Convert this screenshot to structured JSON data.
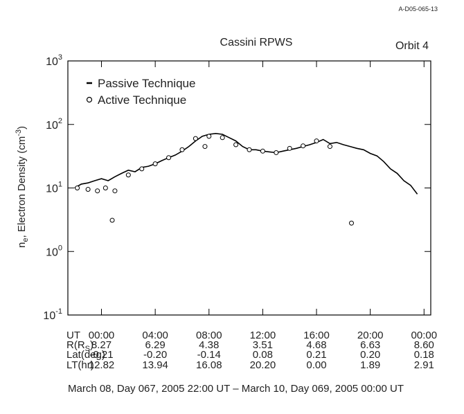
{
  "figure_id": "A-D05-065-13",
  "chart_data": {
    "type": "line",
    "title": "Cassini  RPWS",
    "subtitle": "Orbit 4",
    "y_label": [
      "n",
      "e",
      ", Electron Density (cm",
      "-3",
      ")"
    ],
    "log_y": true,
    "ylim": [
      0.1,
      1000
    ],
    "yticks": [
      {
        "value": 0.1,
        "label": "10",
        "exponent": "-1"
      },
      {
        "value": 1,
        "label": "10",
        "exponent": "0"
      },
      {
        "value": 10,
        "label": "10",
        "exponent": "1"
      },
      {
        "value": 100,
        "label": "10",
        "exponent": "2"
      },
      {
        "value": 1000,
        "label": "10",
        "exponent": "3"
      }
    ],
    "xlim": [
      -2.5,
      24.5
    ],
    "x_row_label": "UT",
    "xticks": [
      {
        "value": 0,
        "label": "00:00"
      },
      {
        "value": 4,
        "label": "04:00"
      },
      {
        "value": 8,
        "label": "08:00"
      },
      {
        "value": 12,
        "label": "12:00"
      },
      {
        "value": 16,
        "label": "16:00"
      },
      {
        "value": 20,
        "label": "20:00"
      },
      {
        "value": 24,
        "label": "00:00"
      }
    ],
    "ephemeris": [
      {
        "label": [
          "R(R",
          "S",
          ")"
        ],
        "values": [
          "8.27",
          "6.29",
          "4.38",
          "3.51",
          "4.68",
          "6.63",
          "8.60"
        ]
      },
      {
        "label": [
          "Lat(deg)"
        ],
        "values": [
          "-0.21",
          "-0.20",
          "-0.14",
          "0.08",
          "0.21",
          "0.20",
          "0.18"
        ]
      },
      {
        "label": [
          "LT(hr)"
        ],
        "values": [
          "12.82",
          "13.94",
          "16.08",
          "20.20",
          "0.00",
          "1.89",
          "2.91"
        ]
      }
    ],
    "caption": "March 08, Day 067, 2005  22:00 UT –  March 10, Day 069, 2005  00:00 UT",
    "series": [
      {
        "name": "Passive Technique",
        "color": "#000000",
        "marker": "line",
        "x": [
          -2,
          -1.5,
          -1,
          -0.5,
          0,
          0.5,
          1,
          1.5,
          2,
          2.5,
          3,
          3.5,
          4,
          4.5,
          5,
          5.5,
          6,
          6.5,
          7,
          7.5,
          8,
          8.5,
          9,
          9.5,
          10,
          10.5,
          11,
          11.5,
          12,
          12.5,
          13,
          13.5,
          14,
          14.5,
          15,
          15.5,
          16,
          16.5,
          17,
          17.5,
          18,
          18.5,
          19,
          19.5,
          20,
          20.5,
          21,
          21.5,
          22,
          22.5,
          23,
          23.5
        ],
        "values": [
          10,
          11.5,
          12,
          13,
          14,
          13,
          15,
          17,
          19,
          18,
          21,
          22,
          24,
          27,
          30,
          33,
          38,
          45,
          55,
          65,
          70,
          72,
          70,
          62,
          55,
          45,
          40,
          40,
          38,
          37,
          36,
          38,
          40,
          42,
          45,
          48,
          52,
          58,
          50,
          52,
          48,
          45,
          42,
          40,
          35,
          32,
          26,
          20,
          17,
          13,
          11,
          8
        ]
      },
      {
        "name": "Active Technique",
        "color": "#000000",
        "marker": "circle",
        "x": [
          -1.8,
          -1,
          -0.3,
          0.3,
          0.8,
          1,
          2,
          3,
          4,
          5,
          6,
          7,
          7.7,
          8,
          9,
          10,
          11,
          12,
          13,
          14,
          15,
          16,
          17,
          18.6
        ],
        "values": [
          10,
          9.5,
          9,
          10,
          3.1,
          9,
          16,
          20,
          24,
          30,
          40,
          60,
          45,
          65,
          62,
          48,
          40,
          38,
          36,
          42,
          46,
          55,
          45,
          2.8
        ]
      }
    ]
  }
}
